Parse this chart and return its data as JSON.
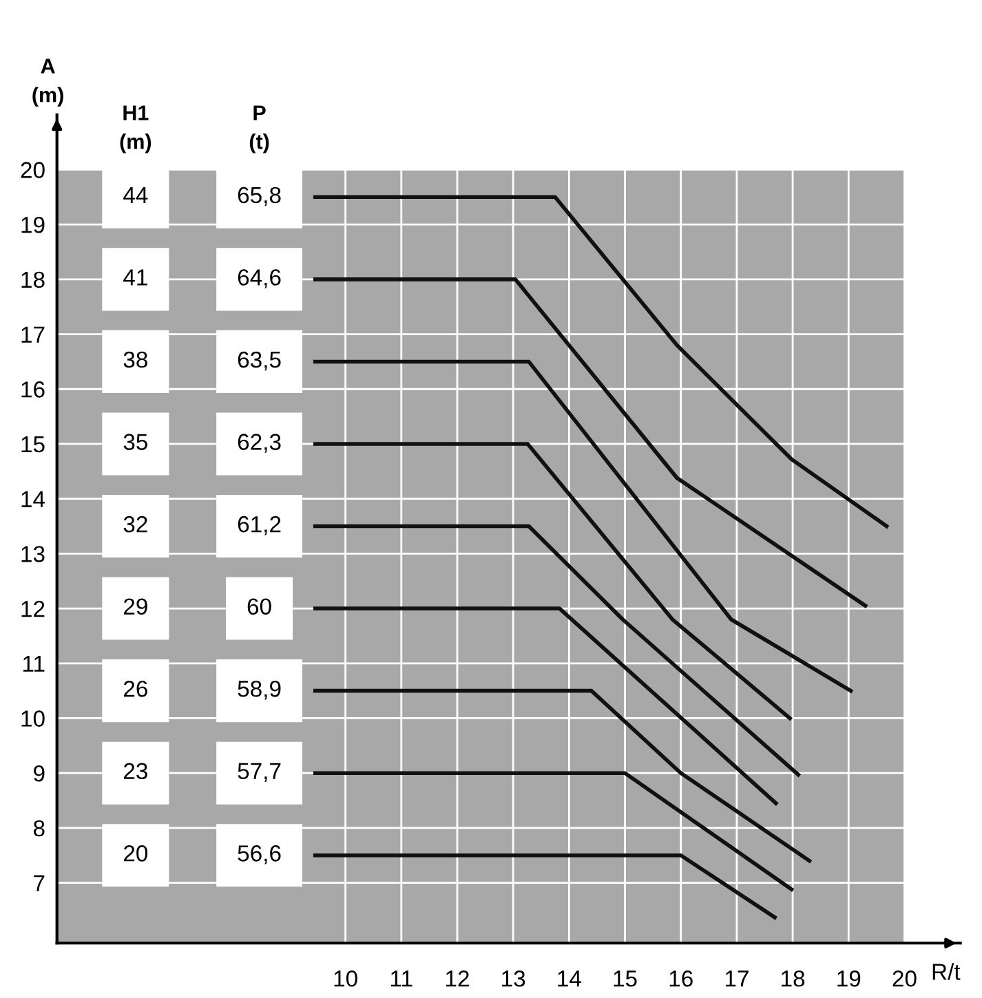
{
  "chart_data": {
    "type": "line",
    "xlabel": "R/t",
    "ylabel": "A\n(m)",
    "series": [
      {
        "color": "#111111",
        "x": [
          9.46,
          13.75,
          15.93,
          17.98,
          19.68
        ],
        "values": [
          19.5,
          19.5,
          16.8,
          14.72,
          13.5
        ]
      },
      {
        "color": "#111111",
        "x": [
          9.46,
          13.04,
          15.93,
          19.3
        ],
        "values": [
          18,
          18,
          14.38,
          12.05
        ]
      },
      {
        "color": "#111111",
        "x": [
          9.46,
          13.28,
          16.9,
          19.04
        ],
        "values": [
          16.5,
          16.5,
          11.8,
          10.5
        ]
      },
      {
        "color": "#111111",
        "x": [
          9.46,
          13.26,
          15.85,
          17.95
        ],
        "values": [
          15,
          15,
          11.8,
          10.0
        ]
      },
      {
        "color": "#111111",
        "x": [
          9.46,
          13.28,
          14.96,
          18.1
        ],
        "values": [
          13.5,
          13.5,
          11.8,
          8.97
        ]
      },
      {
        "color": "#111111",
        "x": [
          9.46,
          13.83,
          17.7
        ],
        "values": [
          12,
          12,
          8.45
        ]
      },
      {
        "color": "#111111",
        "x": [
          9.46,
          14.4,
          16.0,
          18.3
        ],
        "values": [
          10.5,
          10.5,
          9.0,
          7.4
        ]
      },
      {
        "color": "#111111",
        "x": [
          9.46,
          15.0,
          17.98
        ],
        "values": [
          9,
          9,
          6.88
        ]
      },
      {
        "color": "#111111",
        "x": [
          9.46,
          16.0,
          17.68
        ],
        "values": [
          7.5,
          7.5,
          6.37
        ]
      }
    ],
    "annotations": [
      "H1\n(m)",
      "P\n(t)",
      "44",
      "65,8",
      "41",
      "64,6",
      "38",
      "63,5",
      "35",
      "62,3",
      "32",
      "61,2",
      "29",
      "60",
      "26",
      "58,9",
      "23",
      "57,7",
      "20",
      "56,6"
    ],
    "xlim": [
      4.84,
      21.0
    ],
    "ylim": [
      5.9,
      21.0
    ],
    "xticks": [
      10,
      11,
      12,
      13,
      14,
      15,
      16,
      17,
      18,
      19,
      20
    ],
    "yticks": [
      7,
      8,
      9,
      10,
      11,
      12,
      13,
      14,
      15,
      16,
      17,
      18,
      19,
      20
    ],
    "grid": true,
    "marker": "none",
    "line_style": "solid"
  }
}
